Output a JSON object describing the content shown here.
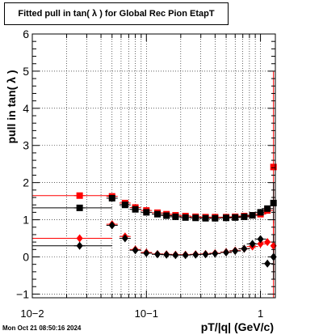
{
  "title": "Fitted pull in tan( λ ) for Global Rec Pion EtapT",
  "timestamp": "Mon Oct 21 08:50:16 2024",
  "chart_data": {
    "type": "scatter",
    "title": "Fitted pull in tan( λ ) for Global Rec Pion EtapT",
    "xlabel": "pT/|q| (GeV/c)",
    "ylabel": "pull in tan( λ )",
    "xscale": "log",
    "xlim": [
      0.01,
      1.35
    ],
    "ylim": [
      -1.1,
      6
    ],
    "grid": true,
    "x_tick_labels": [
      "10−2",
      "10−1",
      "1"
    ],
    "y_tick_labels": [
      "−1",
      "0",
      "1",
      "2",
      "3",
      "4",
      "5",
      "6"
    ],
    "colors": {
      "red": "#ff0000",
      "black": "#000000"
    },
    "series": [
      {
        "color": "#ff0000",
        "marker": "square",
        "points": [
          {
            "x": 0.026,
            "y": 1.65,
            "xlo": 0.01,
            "xhi": 0.05
          },
          {
            "x": 0.05,
            "y": 1.63
          },
          {
            "x": 0.065,
            "y": 1.45
          },
          {
            "x": 0.08,
            "y": 1.33
          },
          {
            "x": 0.1,
            "y": 1.25
          },
          {
            "x": 0.125,
            "y": 1.19
          },
          {
            "x": 0.15,
            "y": 1.15
          },
          {
            "x": 0.18,
            "y": 1.12
          },
          {
            "x": 0.22,
            "y": 1.1
          },
          {
            "x": 0.27,
            "y": 1.08
          },
          {
            "x": 0.33,
            "y": 1.07
          },
          {
            "x": 0.4,
            "y": 1.07
          },
          {
            "x": 0.5,
            "y": 1.07
          },
          {
            "x": 0.6,
            "y": 1.08
          },
          {
            "x": 0.72,
            "y": 1.1
          },
          {
            "x": 0.85,
            "y": 1.12
          },
          {
            "x": 1.0,
            "y": 1.15
          },
          {
            "x": 1.15,
            "y": 1.25
          },
          {
            "x": 1.3,
            "y": 2.42,
            "ylo": -1.1,
            "yhi": 5.0
          }
        ]
      },
      {
        "color": "#000000",
        "marker": "square",
        "points": [
          {
            "x": 0.026,
            "y": 1.32,
            "xlo": 0.01,
            "xhi": 0.05
          },
          {
            "x": 0.05,
            "y": 1.58
          },
          {
            "x": 0.065,
            "y": 1.4
          },
          {
            "x": 0.08,
            "y": 1.28
          },
          {
            "x": 0.1,
            "y": 1.2
          },
          {
            "x": 0.125,
            "y": 1.15
          },
          {
            "x": 0.15,
            "y": 1.11
          },
          {
            "x": 0.18,
            "y": 1.08
          },
          {
            "x": 0.22,
            "y": 1.06
          },
          {
            "x": 0.27,
            "y": 1.05
          },
          {
            "x": 0.33,
            "y": 1.04
          },
          {
            "x": 0.4,
            "y": 1.04
          },
          {
            "x": 0.5,
            "y": 1.05
          },
          {
            "x": 0.6,
            "y": 1.06
          },
          {
            "x": 0.72,
            "y": 1.08
          },
          {
            "x": 0.85,
            "y": 1.12
          },
          {
            "x": 1.0,
            "y": 1.2
          },
          {
            "x": 1.15,
            "y": 1.3
          },
          {
            "x": 1.3,
            "y": 1.45,
            "ylo": 0.9,
            "yhi": 2.0
          }
        ]
      },
      {
        "color": "#ff0000",
        "marker": "diamond",
        "points": [
          {
            "x": 0.026,
            "y": 0.5,
            "xlo": 0.01,
            "xhi": 0.05
          },
          {
            "x": 0.05,
            "y": 0.88
          },
          {
            "x": 0.065,
            "y": 0.55
          },
          {
            "x": 0.08,
            "y": 0.2
          },
          {
            "x": 0.1,
            "y": 0.12
          },
          {
            "x": 0.125,
            "y": 0.08
          },
          {
            "x": 0.15,
            "y": 0.07
          },
          {
            "x": 0.18,
            "y": 0.06
          },
          {
            "x": 0.22,
            "y": 0.06
          },
          {
            "x": 0.27,
            "y": 0.07
          },
          {
            "x": 0.33,
            "y": 0.08
          },
          {
            "x": 0.4,
            "y": 0.1
          },
          {
            "x": 0.5,
            "y": 0.13
          },
          {
            "x": 0.6,
            "y": 0.17
          },
          {
            "x": 0.72,
            "y": 0.22
          },
          {
            "x": 0.85,
            "y": 0.28
          },
          {
            "x": 1.0,
            "y": 0.35
          },
          {
            "x": 1.15,
            "y": 0.4
          },
          {
            "x": 1.3,
            "y": 0.3,
            "ylo": -0.4,
            "yhi": 1.0
          }
        ]
      },
      {
        "color": "#000000",
        "marker": "diamond",
        "points": [
          {
            "x": 0.026,
            "y": 0.3,
            "xlo": 0.01,
            "xhi": 0.05
          },
          {
            "x": 0.05,
            "y": 0.85
          },
          {
            "x": 0.065,
            "y": 0.5
          },
          {
            "x": 0.08,
            "y": 0.18
          },
          {
            "x": 0.1,
            "y": 0.1
          },
          {
            "x": 0.125,
            "y": 0.07
          },
          {
            "x": 0.15,
            "y": 0.06
          },
          {
            "x": 0.18,
            "y": 0.05
          },
          {
            "x": 0.22,
            "y": 0.05
          },
          {
            "x": 0.27,
            "y": 0.06
          },
          {
            "x": 0.33,
            "y": 0.07
          },
          {
            "x": 0.4,
            "y": 0.09
          },
          {
            "x": 0.5,
            "y": 0.12
          },
          {
            "x": 0.6,
            "y": 0.16
          },
          {
            "x": 0.72,
            "y": 0.22
          },
          {
            "x": 0.85,
            "y": 0.35
          },
          {
            "x": 1.0,
            "y": 0.48
          },
          {
            "x": 1.15,
            "y": -0.18
          },
          {
            "x": 1.3,
            "y": 0.0,
            "ylo": -0.6,
            "yhi": 0.6
          }
        ]
      }
    ]
  }
}
